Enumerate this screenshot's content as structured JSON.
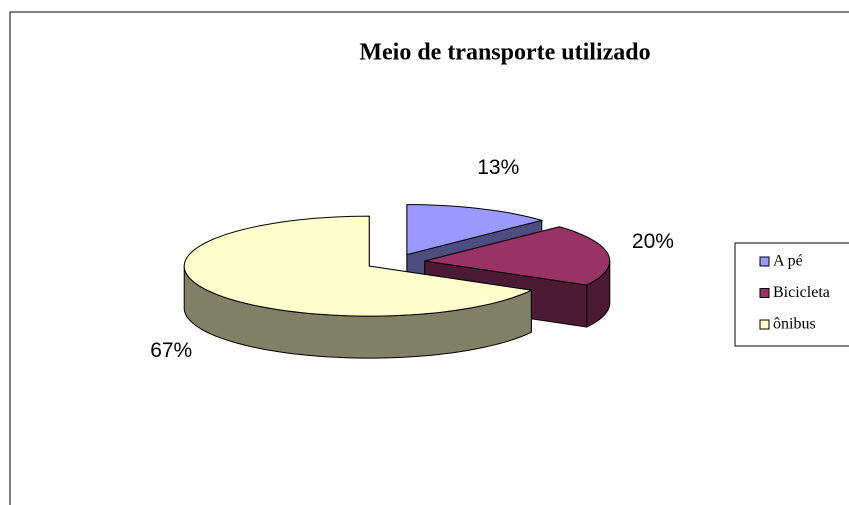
{
  "chart_data": {
    "type": "pie3d",
    "title": "Meio de transporte utilizado",
    "categories": [
      "A pé",
      "Bicicleta",
      "ônibus"
    ],
    "values": [
      13,
      20,
      67
    ],
    "value_labels": [
      "13%",
      "20%",
      "67%"
    ],
    "colors": [
      "#9999ff",
      "#993366",
      "#ffffcc"
    ],
    "legend": "right"
  }
}
